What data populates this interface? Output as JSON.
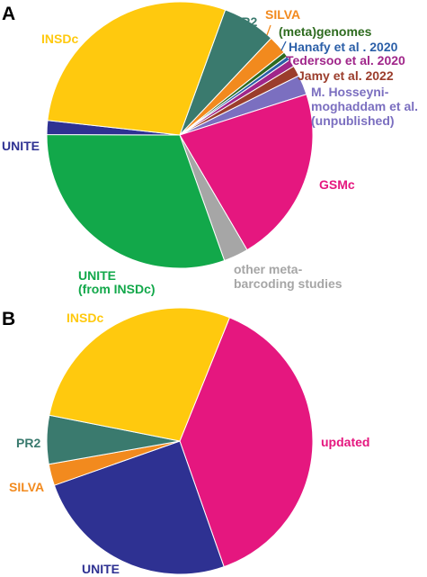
{
  "chart_data": [
    {
      "type": "pie",
      "panel_label": "A",
      "slices": [
        {
          "label": "PR2",
          "value": 6.5,
          "color": "#3a7a6e"
        },
        {
          "label": "SILVA",
          "value": 2.3,
          "color": "#f28a1e"
        },
        {
          "label": "(meta)genomes",
          "value": 0.6,
          "color": "#2e6b1f"
        },
        {
          "label": "Hanafy et al . 2020",
          "value": 0.5,
          "color": "#2b5fa8"
        },
        {
          "label": "Tedersoo et al. 2020",
          "value": 0.9,
          "color": "#a0268a"
        },
        {
          "label": "Jamy et al. 2022",
          "value": 1.3,
          "color": "#9b3d2c"
        },
        {
          "label": "M. Hosseyni-moghaddam et al. (unpublished)",
          "value": 2.4,
          "color": "#7b6fc0"
        },
        {
          "label": "GSMc",
          "value": 21.5,
          "color": "#e5177f"
        },
        {
          "label": "other meta-barcoding studies",
          "value": 3.0,
          "color": "#a6a6a6"
        },
        {
          "label": "UNITE (from INSDc)",
          "value": 30.5,
          "color": "#12a84a"
        },
        {
          "label": "UNITE",
          "value": 1.7,
          "color": "#2e3192"
        },
        {
          "label": "INSDc",
          "value": 28.8,
          "color": "#ffc90e"
        }
      ]
    },
    {
      "type": "pie",
      "panel_label": "B",
      "slices": [
        {
          "label": "updated",
          "value": 38.5,
          "color": "#e5177f"
        },
        {
          "label": "UNITE",
          "value": 25.0,
          "color": "#2e3192"
        },
        {
          "label": "SILVA",
          "value": 2.6,
          "color": "#f28a1e"
        },
        {
          "label": "PR2",
          "value": 5.9,
          "color": "#3a7a6e"
        },
        {
          "label": "INSDc",
          "value": 28.0,
          "color": "#ffc90e"
        }
      ]
    }
  ],
  "labels": {
    "a": {
      "pr2": "PR2",
      "silva": "SILVA",
      "metagenomes": "(meta)genomes",
      "hanafy": "Hanafy et al . 2020",
      "tedersoo": "Tedersoo et al. 2020",
      "jamy": "Jamy et al. 2022",
      "hosseyni_l1": "M. Hosseyni-",
      "hosseyni_l2": "moghaddam et al.",
      "hosseyni_l3": "(unpublished)",
      "gsmc": "GSMc",
      "other_l1": "other meta-",
      "other_l2": "barcoding studies",
      "unite_insdc_l1": "UNITE",
      "unite_insdc_l2": "(from INSDc)",
      "unite": "UNITE",
      "insdc": "INSDc"
    },
    "b": {
      "insdc": "INSDc",
      "updated": "updated",
      "pr2": "PR2",
      "silva": "SILVA",
      "unite": "UNITE"
    }
  }
}
